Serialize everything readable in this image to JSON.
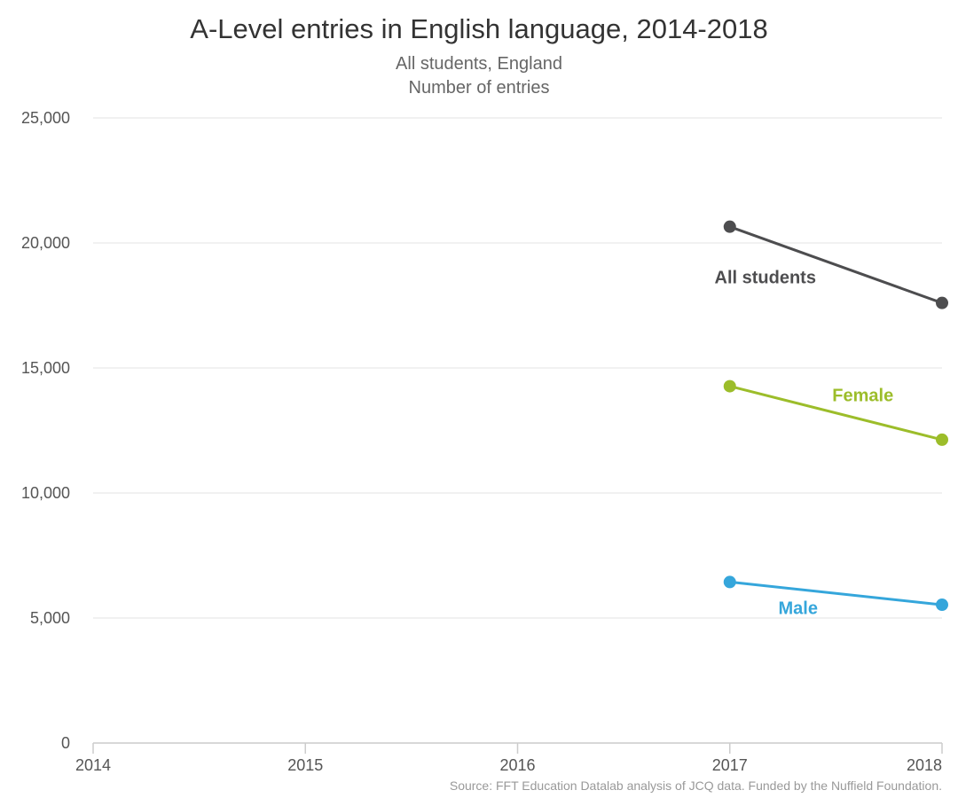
{
  "chart_data": {
    "type": "line",
    "title": "A-Level entries in English language, 2014-2018",
    "subtitle_lines": [
      "All students, England",
      "Number of entries"
    ],
    "source": "Source: FFT Education Datalab analysis of JCQ data. Funded by the Nuffield Foundation.",
    "x": [
      2014,
      2015,
      2016,
      2017,
      2018
    ],
    "x_tick_labels": [
      "2014",
      "2015",
      "2016",
      "2017",
      "2018"
    ],
    "xlim": [
      2014,
      2018
    ],
    "ylim": [
      0,
      25000
    ],
    "y_ticks": [
      0,
      5000,
      10000,
      15000,
      20000,
      25000
    ],
    "y_tick_labels": [
      "0",
      "5,000",
      "10,000",
      "15,000",
      "20,000",
      "25,000"
    ],
    "grid": true,
    "legend": "direct labels",
    "series": [
      {
        "name": "All students",
        "color": "#4d4d4f",
        "points": [
          [
            2017,
            20650
          ],
          [
            2018,
            17600
          ]
        ]
      },
      {
        "name": "Female",
        "color": "#9cbd2a",
        "points": [
          [
            2017,
            14270
          ],
          [
            2018,
            12130
          ]
        ]
      },
      {
        "name": "Male",
        "color": "#35a6db",
        "points": [
          [
            2017,
            6440
          ],
          [
            2018,
            5530
          ]
        ]
      }
    ]
  }
}
